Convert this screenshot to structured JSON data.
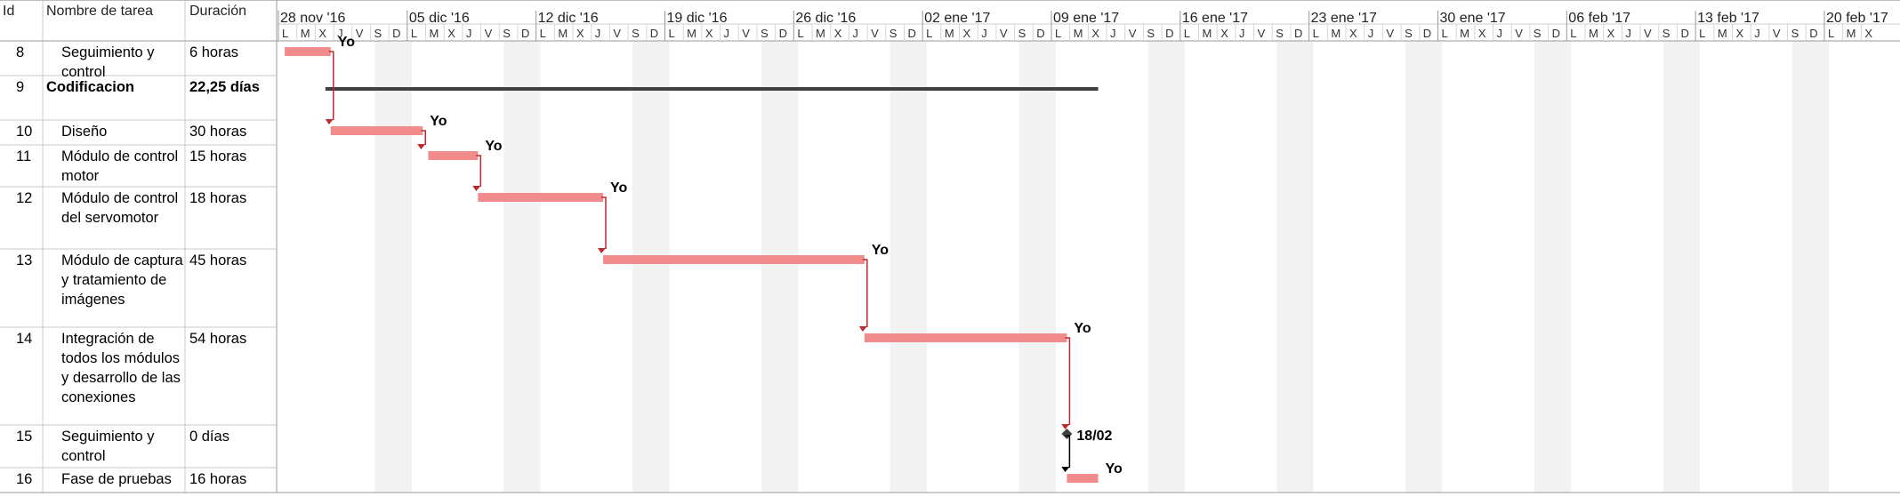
{
  "columns": {
    "id": "Id",
    "name": "Nombre de tarea",
    "duration": "Duración"
  },
  "timeline": {
    "weeks": [
      "28 nov '16",
      "05 dic '16",
      "12 dic '16",
      "19 dic '16",
      "26 dic '16",
      "02 ene '17",
      "09 ene '17",
      "16 ene '17",
      "23 ene '17",
      "30 ene '17",
      "06 feb '17",
      "13 feb '17",
      "20 feb '17"
    ],
    "day_letters": [
      "L",
      "M",
      "X",
      "J",
      "V",
      "S",
      "D"
    ],
    "day_letters_tail": [
      "L",
      "M",
      "X"
    ]
  },
  "tasks": [
    {
      "id": "8",
      "name_lines": [
        "Seguimiento y",
        "control"
      ],
      "duration": "6 horas",
      "summary": false,
      "start_day": 0.1,
      "end_day": 2.6,
      "resource": "Yo"
    },
    {
      "id": "9",
      "name_lines": [
        "Codificacion"
      ],
      "duration": "22,25 días",
      "summary": true,
      "start_day": 2.6,
      "end_day": 44.3,
      "resource": ""
    },
    {
      "id": "10",
      "name_lines": [
        "Diseño"
      ],
      "duration": "30 horas",
      "summary": false,
      "start_day": 2.6,
      "end_day": 7.6,
      "resource": "Yo"
    },
    {
      "id": "11",
      "name_lines": [
        "Módulo de control",
        "motor"
      ],
      "duration": "15 horas",
      "summary": false,
      "start_day": 7.9,
      "end_day": 10.6,
      "resource": "Yo"
    },
    {
      "id": "12",
      "name_lines": [
        "Módulo de control",
        "del servomotor"
      ],
      "duration": "18 horas",
      "summary": false,
      "start_day": 10.6,
      "end_day": 17.4,
      "resource": "Yo"
    },
    {
      "id": "13",
      "name_lines": [
        "Módulo de captura",
        "y tratamiento de",
        "imágenes"
      ],
      "duration": "45 horas",
      "summary": false,
      "start_day": 17.4,
      "end_day": 31.6,
      "resource": "Yo"
    },
    {
      "id": "14",
      "name_lines": [
        "Integración de",
        "todos los módulos",
        "y desarrollo de las",
        "conexiones"
      ],
      "duration": "54 horas",
      "summary": false,
      "start_day": 31.6,
      "end_day": 42.6,
      "resource": "Yo"
    },
    {
      "id": "15",
      "name_lines": [
        "Seguimiento y",
        "control"
      ],
      "duration": "0 días",
      "summary": false,
      "milestone": true,
      "start_day": 42.6,
      "end_day": 42.6,
      "resource": "18/02"
    },
    {
      "id": "16",
      "name_lines": [
        "Fase de pruebas"
      ],
      "duration": "16 horas",
      "summary": false,
      "start_day": 42.6,
      "end_day": 44.3,
      "resource": "Yo"
    }
  ],
  "colors": {
    "task_bar": "#f28b8b",
    "summary_bar": "#404040",
    "link_arrow": "#c0282d",
    "milestone_link": "#000000",
    "weekend_shade": "#f2f2f2",
    "grid_line": "#c8c8c8"
  }
}
